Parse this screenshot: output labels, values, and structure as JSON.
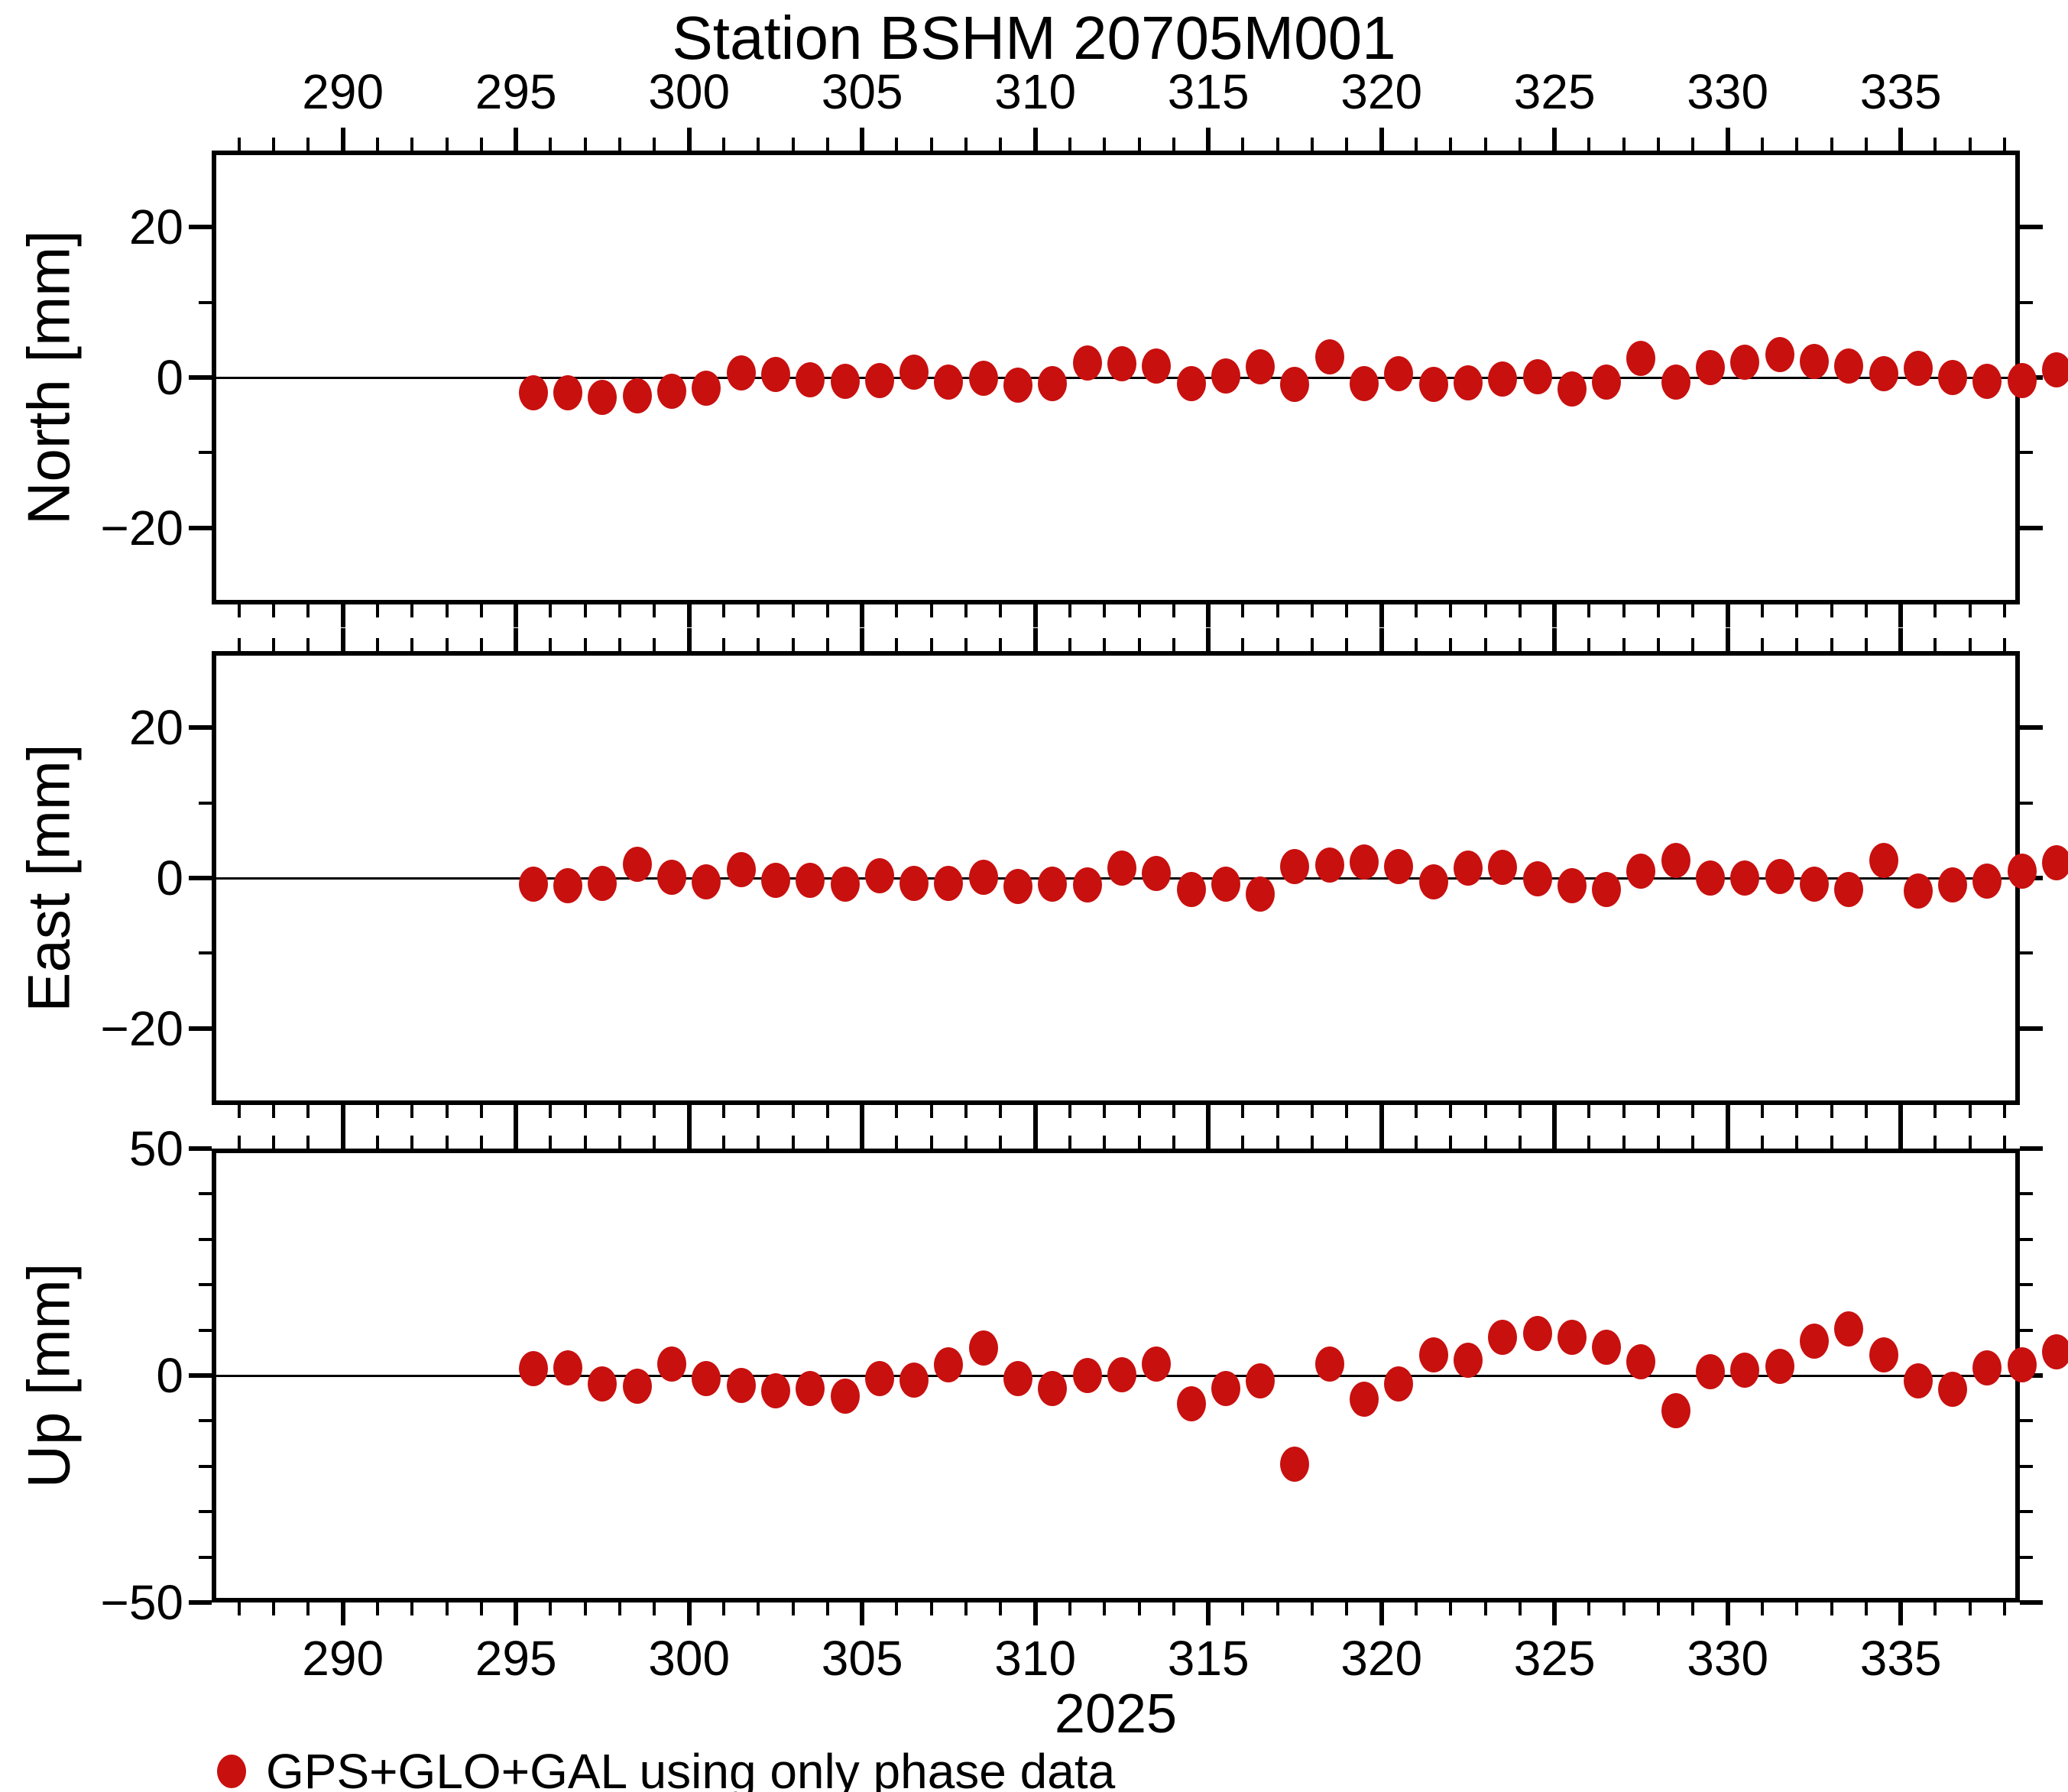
{
  "title": "Station BSHM 20705M001",
  "x_axis_label": "2025",
  "legend": {
    "label": "GPS+GLO+GAL using only phase data"
  },
  "chart_data": {
    "type": "scatter",
    "title": "Station BSHM 20705M001",
    "x_year": "2025",
    "point_color": "#C8100F",
    "grid": "zero-line-only",
    "legend_entries": [
      "GPS+GLO+GAL using only phase data"
    ],
    "xlim": [
      286.21,
      338.44
    ],
    "xticks_major": [
      290,
      295,
      300,
      305,
      310,
      315,
      320,
      325,
      330,
      335
    ],
    "xtick_minor_step": 1,
    "x": [
      295.5,
      296.5,
      297.5,
      298.5,
      299.5,
      300.5,
      301.5,
      302.5,
      303.5,
      304.5,
      305.5,
      306.5,
      307.5,
      308.5,
      309.5,
      310.5,
      311.5,
      312.5,
      313.5,
      314.5,
      315.5,
      316.5,
      317.5,
      318.5,
      319.5,
      320.5,
      321.5,
      322.5,
      323.5,
      324.5,
      325.5,
      326.5,
      327.5,
      328.5,
      329.5,
      330.5,
      331.5,
      332.5,
      333.5,
      334.5,
      335.5,
      336.5,
      337.5,
      338.5,
      339.5
    ],
    "panels": [
      {
        "name": "North",
        "axis_label": "North [mm]",
        "ylim": [
          -30.2,
          30.2
        ],
        "yticks": [
          {
            "v": 20,
            "label": "20",
            "major": true
          },
          {
            "v": 10,
            "major": false
          },
          {
            "v": 0,
            "label": "0",
            "major": true
          },
          {
            "v": -10,
            "major": false
          },
          {
            "v": -20,
            "label": "−20",
            "major": true
          }
        ],
        "values": [
          -2.0,
          -2.0,
          -2.6,
          -2.4,
          -1.8,
          -1.4,
          0.6,
          0.4,
          -0.3,
          -0.5,
          -0.4,
          0.7,
          -0.6,
          -0.1,
          -1.0,
          -0.8,
          1.9,
          1.8,
          1.5,
          -0.8,
          0.2,
          1.4,
          -0.9,
          2.7,
          -0.8,
          0.5,
          -0.9,
          -0.7,
          -0.2,
          0.1,
          -1.5,
          -0.6,
          2.5,
          -0.6,
          1.3,
          2.0,
          3.0,
          2.1,
          1.5,
          0.5,
          1.2,
          0.0,
          -0.5,
          -0.4,
          1.0
        ]
      },
      {
        "name": "East",
        "axis_label": "East [mm]",
        "ylim": [
          -30.2,
          30.2
        ],
        "yticks": [
          {
            "v": 20,
            "label": "20",
            "major": true
          },
          {
            "v": 10,
            "major": false
          },
          {
            "v": 0,
            "label": "0",
            "major": true
          },
          {
            "v": -10,
            "major": false
          },
          {
            "v": -20,
            "label": "−20",
            "major": true
          }
        ],
        "values": [
          -0.8,
          -1.0,
          -0.7,
          1.8,
          0.1,
          -0.5,
          1.1,
          -0.3,
          -0.3,
          -0.8,
          0.3,
          -0.7,
          -0.7,
          0.1,
          -1.1,
          -0.8,
          -0.9,
          1.3,
          0.6,
          -1.5,
          -0.8,
          -2.1,
          1.5,
          1.7,
          2.1,
          1.5,
          -0.5,
          1.3,
          1.4,
          -0.1,
          -1.0,
          -1.5,
          0.9,
          2.3,
          0.0,
          0.0,
          0.2,
          -0.8,
          -1.5,
          2.3,
          -1.7,
          -0.9,
          -0.4,
          0.9,
          2.0
        ]
      },
      {
        "name": "Up",
        "axis_label": "Up [mm]",
        "ylim": [
          -50,
          50
        ],
        "yticks": [
          {
            "v": 50,
            "label": "50",
            "major": true
          },
          {
            "v": 40,
            "major": false
          },
          {
            "v": 30,
            "major": false
          },
          {
            "v": 20,
            "major": false
          },
          {
            "v": 10,
            "major": false
          },
          {
            "v": 0,
            "label": "0",
            "major": true
          },
          {
            "v": -10,
            "major": false
          },
          {
            "v": -20,
            "major": false
          },
          {
            "v": -30,
            "major": false
          },
          {
            "v": -40,
            "major": false
          },
          {
            "v": -50,
            "label": "−50",
            "major": true
          }
        ],
        "values": [
          1.5,
          1.7,
          -1.8,
          -2.4,
          2.6,
          -0.7,
          -2.2,
          -3.3,
          -2.9,
          -4.5,
          -0.6,
          -1.0,
          2.4,
          6.0,
          -0.6,
          -2.9,
          0.0,
          0.2,
          2.6,
          -6.3,
          -2.9,
          -1.1,
          -19.5,
          2.6,
          -5.3,
          -1.8,
          4.5,
          3.3,
          8.5,
          9.3,
          8.4,
          6.2,
          3.1,
          -7.8,
          0.9,
          1.2,
          2.0,
          7.5,
          10.2,
          4.6,
          -1.2,
          -3.1,
          1.7,
          2.4,
          5.3
        ]
      }
    ]
  }
}
